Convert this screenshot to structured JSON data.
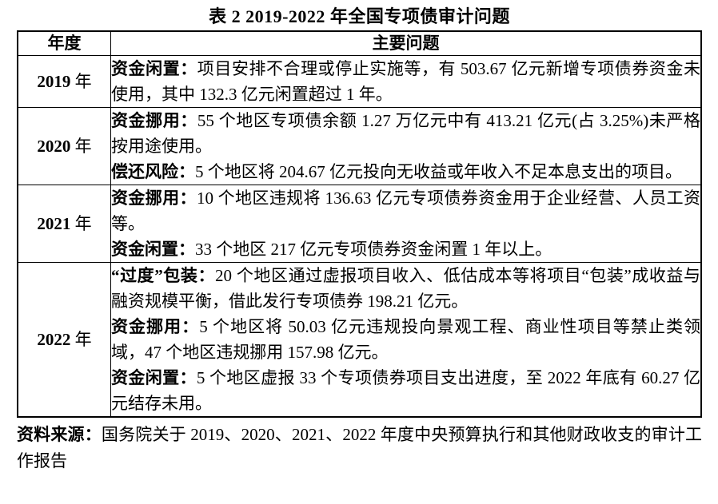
{
  "title": "表 2 2019-2022 年全国专项债审计问题",
  "table": {
    "headers": [
      "年度",
      "主要问题"
    ],
    "rows": [
      {
        "year": "2019 年",
        "problems": [
          {
            "label": "资金闲置：",
            "text": "项目安排不合理或停止实施等，有 503.67 亿元新增专项债券资金未使用，其中 132.3 亿元闲置超过 1 年。"
          }
        ]
      },
      {
        "year": "2020 年",
        "problems": [
          {
            "label": "资金挪用：",
            "text": "55 个地区专项债余额 1.27 万亿元中有 413.21 亿元(占 3.25%)未严格按用途使用。"
          },
          {
            "label": "偿还风险：",
            "text": "5 个地区将 204.67 亿元投向无收益或年收入不足本息支出的项目。"
          }
        ]
      },
      {
        "year": "2021 年",
        "problems": [
          {
            "label": "资金挪用：",
            "text": "10 个地区违规将 136.63 亿元专项债券资金用于企业经营、人员工资等。"
          },
          {
            "label": "资金闲置：",
            "text": "33 个地区 217 亿元专项债券资金闲置 1 年以上。"
          }
        ]
      },
      {
        "year": "2022 年",
        "problems": [
          {
            "label": "“过度”包装：",
            "text": "20 个地区通过虚报项目收入、低估成本等将项目“包装”成收益与融资规模平衡，借此发行专项债券 198.21 亿元。"
          },
          {
            "label": "资金挪用：",
            "text": "5 个地区将 50.03 亿元违规投向景观工程、商业性项目等禁止类领域，47 个地区违规挪用 157.98 亿元。"
          },
          {
            "label": "资金闲置：",
            "text": "5 个地区虚报 33 个专项债券项目支出进度，至 2022 年底有 60.27 亿元结存未用。"
          }
        ]
      }
    ]
  },
  "source": {
    "label": "资料来源：",
    "text": "国务院关于 2019、2020、2021、2022 年度中央预算执行和其他财政收支的审计工作报告"
  }
}
